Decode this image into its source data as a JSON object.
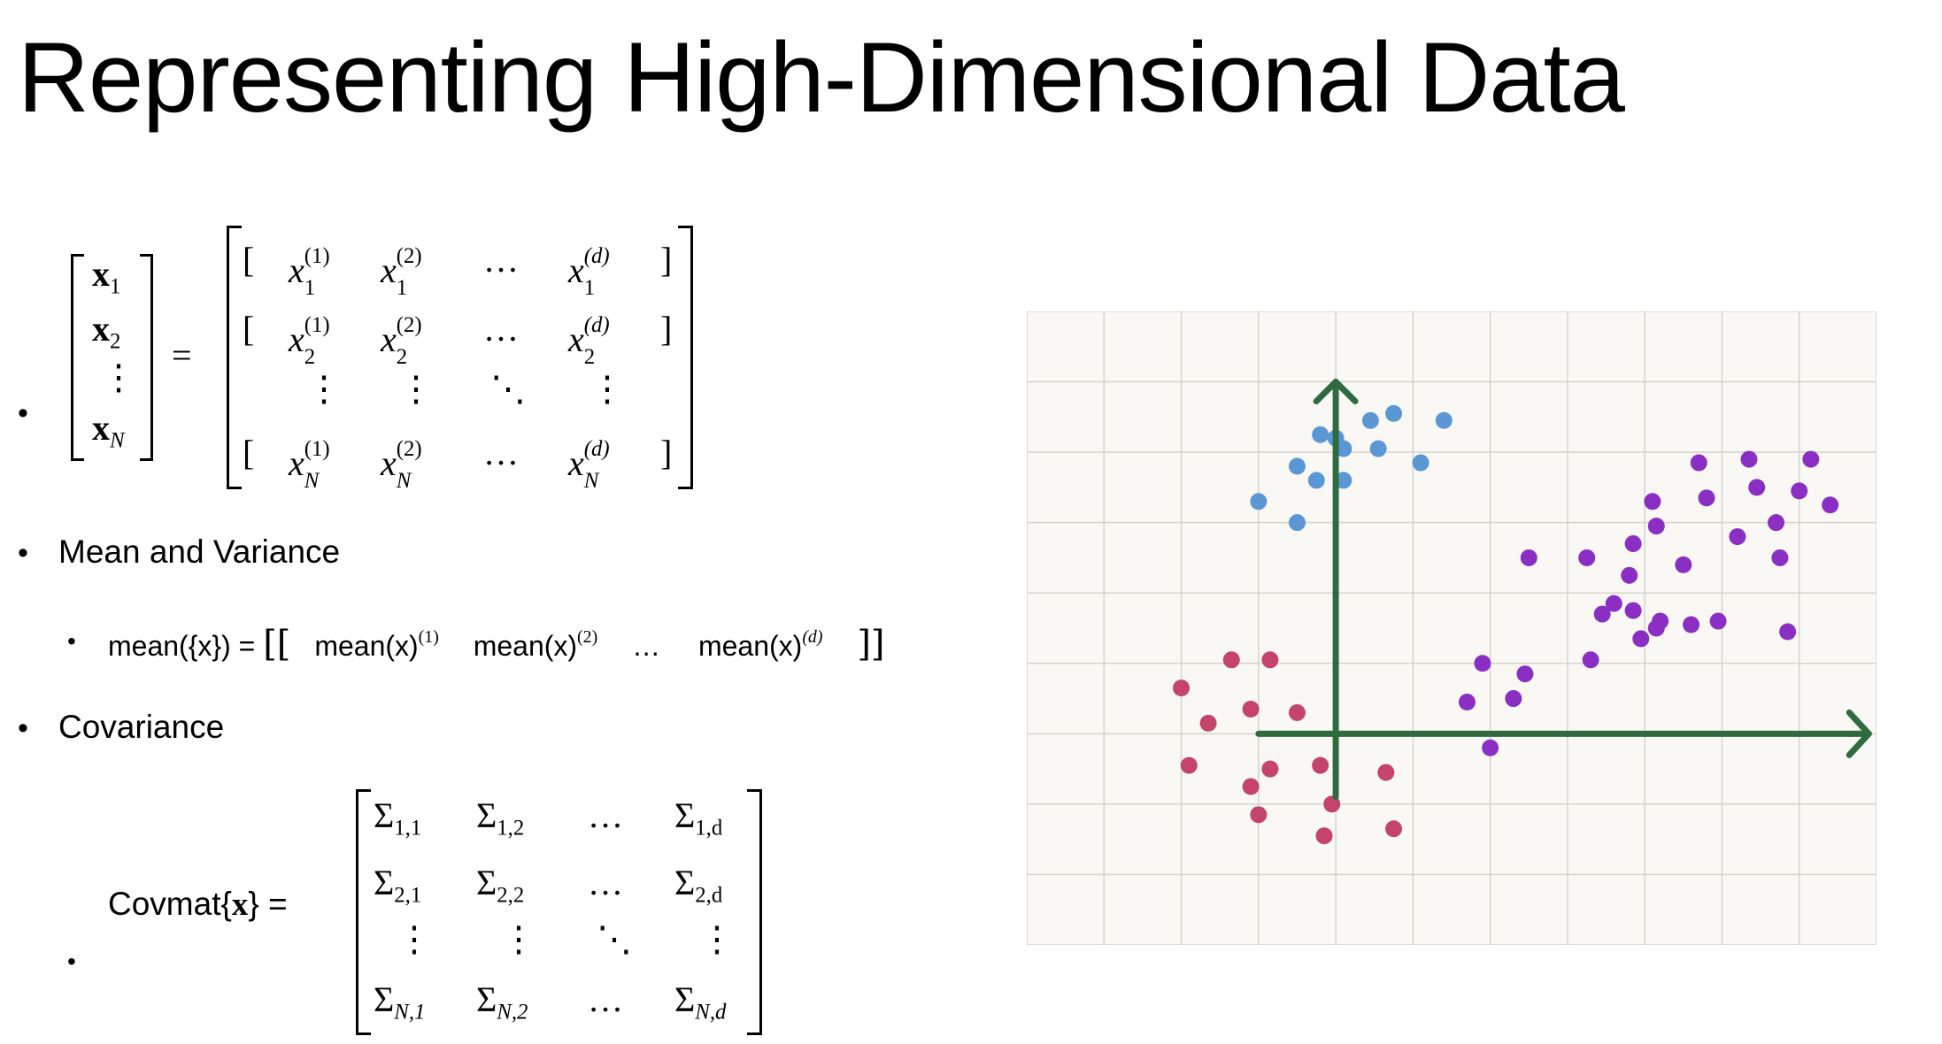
{
  "slide": {
    "title": "Representing High-Dimensional Data"
  },
  "bullets": {
    "dataset": {
      "rows_vector": [
        "x",
        "x",
        "x"
      ],
      "row_subs": [
        "1",
        "2",
        "N"
      ],
      "equals": "=",
      "matrix_rows": [
        {
          "open": "[",
          "sub": "1",
          "sups": [
            "(1)",
            "(2)",
            "(d)"
          ],
          "close": "]"
        },
        {
          "open": "[",
          "sub": "2",
          "sups": [
            "(1)",
            "(2)",
            "(d)"
          ],
          "close": "]"
        },
        {
          "open": "[",
          "sub": "N",
          "sups": [
            "(1)",
            "(2)",
            "(d)"
          ],
          "close": "]"
        }
      ],
      "var": "x",
      "hdots": "…",
      "vdots": "⋮",
      "ddots": "⋱"
    },
    "mean_variance": {
      "label": "Mean and Variance",
      "mean_lhs": "mean({x}) =",
      "mean_fn": "mean(x)",
      "mean_sups": [
        "(1)",
        "(2)",
        "(d)"
      ],
      "hdots": "…"
    },
    "covariance": {
      "label": "Covariance",
      "lhs_fn": "Covmat{",
      "lhs_var": "x",
      "lhs_close": "} =",
      "sigma": "Σ",
      "rows": [
        [
          "1,1",
          "1,2",
          "1,d"
        ],
        [
          "2,1",
          "2,2",
          "2,d"
        ],
        [
          "N,1",
          "N,2",
          "N,d"
        ]
      ],
      "hdots": "…",
      "vdots": "⋮",
      "ddots": "⋱"
    }
  },
  "chart_data": {
    "type": "scatter",
    "title": "",
    "xlabel": "",
    "ylabel": "",
    "xlim": [
      -4,
      7
    ],
    "ylim": [
      -3,
      6
    ],
    "grid": true,
    "legend": "none",
    "axis_color": "#2e6b3e",
    "background": "#faf8f4",
    "series": [
      {
        "color": "#5b97d5",
        "points": [
          [
            0.45,
            4.45
          ],
          [
            0.55,
            4.05
          ],
          [
            0.75,
            4.55
          ],
          [
            1.1,
            3.85
          ],
          [
            -0.5,
            3.8
          ],
          [
            -0.25,
            3.6
          ],
          [
            0.1,
            3.6
          ],
          [
            -1.0,
            3.3
          ],
          [
            -0.5,
            3.0
          ],
          [
            0.0,
            4.2
          ],
          [
            0.1,
            4.05
          ],
          [
            1.4,
            4.45
          ],
          [
            -0.2,
            4.25
          ]
        ]
      },
      {
        "color": "#c4446b",
        "points": [
          [
            -2.0,
            0.65
          ],
          [
            -1.35,
            1.05
          ],
          [
            -1.1,
            0.35
          ],
          [
            -1.65,
            0.15
          ],
          [
            -0.5,
            0.3
          ],
          [
            -1.9,
            -0.45
          ],
          [
            -0.85,
            -0.5
          ],
          [
            -0.2,
            -0.45
          ],
          [
            0.65,
            -0.55
          ],
          [
            -1.1,
            -0.75
          ],
          [
            -0.05,
            -1.0
          ],
          [
            -1.0,
            -1.15
          ],
          [
            -0.15,
            -1.45
          ],
          [
            0.75,
            -1.35
          ],
          [
            -0.85,
            1.05
          ]
        ]
      },
      {
        "color": "#8a2ec4",
        "points": [
          [
            4.7,
            3.85
          ],
          [
            5.35,
            3.9
          ],
          [
            6.15,
            3.9
          ],
          [
            4.8,
            3.35
          ],
          [
            4.1,
            3.3
          ],
          [
            5.45,
            3.5
          ],
          [
            5.7,
            3.0
          ],
          [
            6.0,
            3.45
          ],
          [
            6.4,
            3.25
          ],
          [
            5.2,
            2.8
          ],
          [
            3.85,
            2.7
          ],
          [
            4.5,
            2.4
          ],
          [
            3.8,
            2.25
          ],
          [
            3.25,
            2.5
          ],
          [
            2.5,
            2.5
          ],
          [
            3.85,
            1.75
          ],
          [
            4.2,
            1.6
          ],
          [
            3.45,
            1.7
          ],
          [
            4.95,
            1.6
          ],
          [
            5.85,
            1.45
          ],
          [
            3.3,
            1.05
          ],
          [
            1.9,
            1.0
          ],
          [
            2.45,
            0.85
          ],
          [
            1.7,
            0.45
          ],
          [
            2.3,
            0.5
          ],
          [
            2.0,
            -0.2
          ],
          [
            3.6,
            1.85
          ],
          [
            3.95,
            1.35
          ],
          [
            4.6,
            1.55
          ],
          [
            4.15,
            2.95
          ],
          [
            4.15,
            1.5
          ],
          [
            5.75,
            2.5
          ]
        ]
      }
    ]
  }
}
